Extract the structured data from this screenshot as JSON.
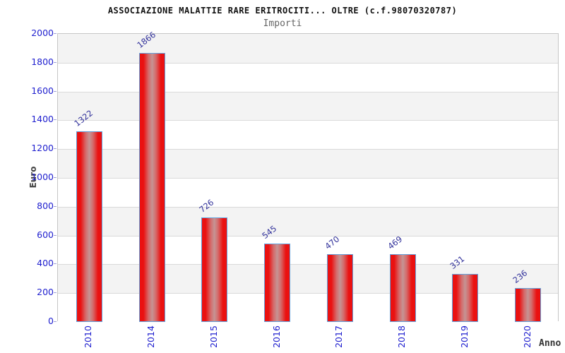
{
  "header": {
    "title": "ASSOCIAZIONE MALATTIE RARE ERITROCITI... OLTRE (c.f.98070320787)",
    "subtitle": "Importi"
  },
  "chart_data": {
    "type": "bar",
    "title": "ASSOCIAZIONE MALATTIE RARE ERITROCITI... OLTRE (c.f.98070320787)",
    "subtitle": "Importi",
    "categories": [
      "2010",
      "2014",
      "2015",
      "2016",
      "2017",
      "2018",
      "2019",
      "2020"
    ],
    "values": [
      1322,
      1866,
      726,
      545,
      470,
      469,
      331,
      236
    ],
    "xlabel": "Anno",
    "ylabel": "Euro",
    "ylim": [
      0,
      2000
    ],
    "yticks": [
      0,
      200,
      400,
      600,
      800,
      1000,
      1200,
      1400,
      1600,
      1800,
      2000
    ],
    "grid": true,
    "legend": "none",
    "colors": {
      "bar_fill": "#ea1111",
      "bar_fill_center": "#c59494",
      "bar_border": "#62a1dc",
      "value_label": "#32329b",
      "tick_label": "#2020cf",
      "band_gray": "#f3f3f3",
      "band_white": "#ffffff",
      "gridline": "#dadada",
      "plot_border": "#c6c6c6",
      "title_color": "#111111",
      "subtitle_color": "#666666",
      "axis_title_color": "#444444"
    }
  }
}
